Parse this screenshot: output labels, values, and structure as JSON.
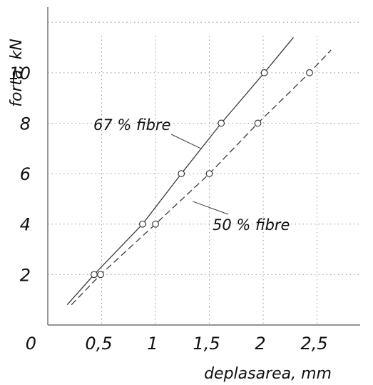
{
  "chart_data": {
    "type": "line",
    "xlabel": "deplasarea, mm",
    "ylabel": "forta, kN",
    "origin_label": "0",
    "xlim": [
      0,
      2.9
    ],
    "ylim": [
      0,
      12.6
    ],
    "x_ticks": [
      0.5,
      1,
      1.5,
      2,
      2.5
    ],
    "x_tick_labels": [
      "0,5",
      "1",
      "1,5",
      "2",
      "2,5"
    ],
    "y_ticks": [
      2,
      4,
      6,
      8,
      10
    ],
    "y_tick_labels": [
      "2",
      "4",
      "6",
      "8",
      "10"
    ],
    "grid": true,
    "series": [
      {
        "name": "67 % fibre",
        "line_style": "solid",
        "marker": "open-circle",
        "points": [
          {
            "x": 0.43,
            "y": 2
          },
          {
            "x": 0.88,
            "y": 4
          },
          {
            "x": 1.24,
            "y": 6
          },
          {
            "x": 1.61,
            "y": 8
          },
          {
            "x": 2.01,
            "y": 10
          }
        ],
        "line": [
          [
            0.18,
            0.8
          ],
          [
            0.43,
            2
          ],
          [
            0.88,
            4
          ],
          [
            1.24,
            6
          ],
          [
            1.61,
            8
          ],
          [
            2.01,
            10
          ],
          [
            2.28,
            11.4
          ]
        ]
      },
      {
        "name": "50 % fibre",
        "line_style": "dashed",
        "marker": "open-circle",
        "points": [
          {
            "x": 0.49,
            "y": 2
          },
          {
            "x": 1.0,
            "y": 4
          },
          {
            "x": 1.5,
            "y": 6
          },
          {
            "x": 1.95,
            "y": 8
          },
          {
            "x": 2.43,
            "y": 10
          }
        ],
        "line": [
          [
            0.22,
            0.8
          ],
          [
            0.49,
            2
          ],
          [
            1.0,
            4
          ],
          [
            1.5,
            6
          ],
          [
            1.95,
            8
          ],
          [
            2.43,
            10
          ],
          [
            2.63,
            10.9
          ]
        ]
      }
    ],
    "colors": {
      "line": "#3a3a3a",
      "grid": "#9a9a9a",
      "axis": "#555555"
    }
  }
}
